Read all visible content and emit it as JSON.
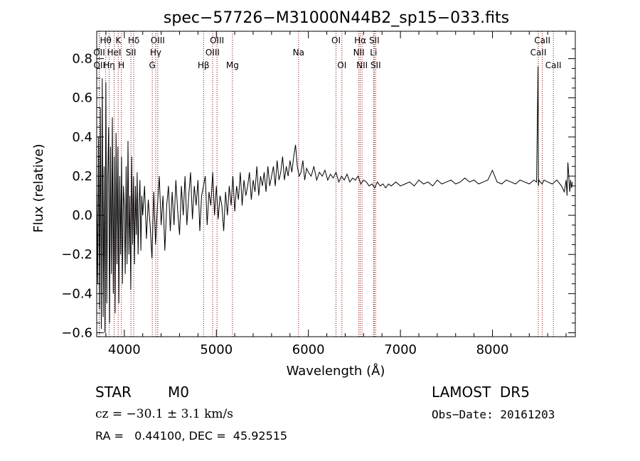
{
  "chart_data": {
    "type": "line",
    "title": "spec−57726−M31000N44B2_sp15−033.fits",
    "xlabel": "Wavelength (Å)",
    "ylabel": "Flux (relative)",
    "xlim": [
      3700,
      8900
    ],
    "ylim": [
      -0.62,
      0.94
    ],
    "x_ticks": [
      4000,
      5000,
      6000,
      7000,
      8000
    ],
    "x_tick_labels": [
      "4000",
      "5000",
      "6000",
      "7000",
      "8000"
    ],
    "y_ticks": [
      -0.6,
      -0.4,
      -0.2,
      0.0,
      0.2,
      0.4,
      0.6,
      0.8
    ],
    "y_tick_labels": [
      "−0.6",
      "−0.4",
      "−0.2",
      "0.0",
      "0.2",
      "0.4",
      "0.6",
      "0.8"
    ],
    "grid": false,
    "line_color": "#000000",
    "marker_color": "#8b0000",
    "spectral_lines": [
      {
        "name": "Hθ",
        "wavelength": 3798,
        "row": 0
      },
      {
        "name": "OII",
        "wavelength": 3727,
        "row": 1
      },
      {
        "name": "OII",
        "wavelength": 3729,
        "row": 2
      },
      {
        "name": "Hη",
        "wavelength": 3835,
        "row": 2
      },
      {
        "name": "HeI",
        "wavelength": 3889,
        "row": 1
      },
      {
        "name": "K",
        "wavelength": 3934,
        "row": 0
      },
      {
        "name": "H",
        "wavelength": 3968,
        "row": 2
      },
      {
        "name": "Hδ",
        "wavelength": 4102,
        "row": 0
      },
      {
        "name": "SII",
        "wavelength": 4072,
        "row": 1
      },
      {
        "name": "OIII",
        "wavelength": 4363,
        "row": 0
      },
      {
        "name": "Hγ",
        "wavelength": 4341,
        "row": 1
      },
      {
        "name": "G",
        "wavelength": 4304,
        "row": 2
      },
      {
        "name": "Hβ",
        "wavelength": 4861,
        "row": 2
      },
      {
        "name": "OIII",
        "wavelength": 5007,
        "row": 0
      },
      {
        "name": "OIII",
        "wavelength": 4959,
        "row": 1
      },
      {
        "name": "Mg",
        "wavelength": 5175,
        "row": 2
      },
      {
        "name": "Na",
        "wavelength": 5893,
        "row": 1
      },
      {
        "name": "OI",
        "wavelength": 6300,
        "row": 0
      },
      {
        "name": "OI",
        "wavelength": 6364,
        "row": 2
      },
      {
        "name": "Hα",
        "wavelength": 6563,
        "row": 0
      },
      {
        "name": "NII",
        "wavelength": 6548,
        "row": 1
      },
      {
        "name": "NII",
        "wavelength": 6583,
        "row": 2
      },
      {
        "name": "SII",
        "wavelength": 6716,
        "row": 0
      },
      {
        "name": "Li",
        "wavelength": 6708,
        "row": 1
      },
      {
        "name": "SII",
        "wavelength": 6731,
        "row": 2
      },
      {
        "name": "CaII",
        "wavelength": 8542,
        "row": 0
      },
      {
        "name": "CaII",
        "wavelength": 8498,
        "row": 1
      },
      {
        "name": "CaII",
        "wavelength": 8662,
        "row": 2
      }
    ],
    "series": [
      {
        "x": [
          3700,
          3710,
          3720,
          3730,
          3740,
          3750,
          3760,
          3770,
          3780,
          3790,
          3800,
          3810,
          3820,
          3830,
          3840,
          3850,
          3860,
          3870,
          3880,
          3890,
          3900,
          3910,
          3920,
          3930,
          3940,
          3950,
          3960,
          3970,
          3980,
          3990,
          4000,
          4010,
          4020,
          4030,
          4040,
          4050,
          4060,
          4070,
          4080,
          4090,
          4100,
          4110,
          4120,
          4130,
          4140,
          4150,
          4160,
          4170,
          4180,
          4190,
          4200,
          4220,
          4240,
          4260,
          4280,
          4300,
          4320,
          4340,
          4360,
          4380,
          4400,
          4420,
          4440,
          4460,
          4480,
          4500,
          4520,
          4540,
          4560,
          4580,
          4600,
          4620,
          4640,
          4660,
          4680,
          4700,
          4720,
          4740,
          4760,
          4780,
          4800,
          4820,
          4840,
          4860,
          4880,
          4900,
          4920,
          4940,
          4960,
          4980,
          5000,
          5020,
          5040,
          5060,
          5080,
          5100,
          5120,
          5140,
          5160,
          5180,
          5200,
          5220,
          5240,
          5260,
          5280,
          5300,
          5320,
          5340,
          5360,
          5380,
          5400,
          5420,
          5440,
          5460,
          5480,
          5500,
          5520,
          5540,
          5560,
          5580,
          5600,
          5620,
          5640,
          5660,
          5680,
          5700,
          5720,
          5740,
          5760,
          5780,
          5800,
          5820,
          5840,
          5860,
          5880,
          5900,
          5920,
          5940,
          5960,
          5980,
          6000,
          6030,
          6060,
          6090,
          6120,
          6150,
          6180,
          6210,
          6240,
          6270,
          6300,
          6330,
          6360,
          6390,
          6420,
          6450,
          6480,
          6510,
          6540,
          6570,
          6600,
          6630,
          6660,
          6690,
          6720,
          6750,
          6780,
          6810,
          6840,
          6870,
          6900,
          6950,
          7000,
          7050,
          7100,
          7150,
          7200,
          7250,
          7300,
          7350,
          7400,
          7450,
          7500,
          7550,
          7600,
          7650,
          7700,
          7750,
          7800,
          7850,
          7900,
          7950,
          8000,
          8050,
          8100,
          8150,
          8200,
          8250,
          8300,
          8350,
          8400,
          8450,
          8480,
          8495,
          8500,
          8505,
          8520,
          8540,
          8560,
          8600,
          8650,
          8700,
          8750,
          8780,
          8800,
          8810,
          8820,
          8830,
          8840,
          8850,
          8860,
          8870
        ],
        "y": [
          0.15,
          -0.35,
          0.4,
          -0.48,
          0.55,
          -0.58,
          0.7,
          -0.52,
          0.25,
          -0.6,
          0.68,
          -0.45,
          0.2,
          0.45,
          -0.55,
          0.35,
          -0.3,
          0.5,
          -0.4,
          0.3,
          -0.5,
          0.42,
          -0.25,
          0.35,
          -0.45,
          0.2,
          -0.2,
          0.3,
          -0.35,
          0.15,
          0.05,
          -0.3,
          0.25,
          -0.25,
          0.38,
          -0.2,
          0.1,
          -0.38,
          0.3,
          -0.15,
          0.2,
          -0.25,
          0.15,
          -0.1,
          0.22,
          -0.2,
          0.05,
          0.18,
          -0.18,
          0.1,
          0.0,
          0.15,
          -0.12,
          0.08,
          -0.05,
          -0.22,
          0.12,
          -0.15,
          0.05,
          0.2,
          -0.05,
          0.1,
          -0.18,
          0.05,
          0.15,
          -0.08,
          0.12,
          -0.05,
          0.18,
          0.02,
          -0.1,
          0.15,
          0.0,
          0.2,
          -0.05,
          0.1,
          0.22,
          -0.02,
          0.15,
          0.05,
          0.18,
          -0.08,
          0.1,
          0.15,
          0.2,
          -0.05,
          0.12,
          0.05,
          0.22,
          0.0,
          0.15,
          -0.02,
          0.1,
          0.05,
          -0.08,
          0.12,
          0.0,
          0.15,
          0.05,
          0.2,
          0.02,
          0.15,
          0.08,
          0.22,
          0.05,
          0.18,
          0.1,
          0.15,
          0.22,
          0.08,
          0.18,
          0.12,
          0.25,
          0.1,
          0.2,
          0.15,
          0.22,
          0.12,
          0.25,
          0.15,
          0.2,
          0.25,
          0.15,
          0.28,
          0.18,
          0.22,
          0.3,
          0.18,
          0.25,
          0.2,
          0.28,
          0.22,
          0.3,
          0.36,
          0.25,
          0.2,
          0.22,
          0.28,
          0.18,
          0.24,
          0.22,
          0.2,
          0.25,
          0.18,
          0.22,
          0.2,
          0.23,
          0.18,
          0.21,
          0.19,
          0.22,
          0.17,
          0.2,
          0.18,
          0.21,
          0.17,
          0.19,
          0.18,
          0.2,
          0.16,
          0.18,
          0.17,
          0.15,
          0.16,
          0.14,
          0.17,
          0.15,
          0.16,
          0.14,
          0.16,
          0.15,
          0.17,
          0.15,
          0.16,
          0.17,
          0.15,
          0.18,
          0.16,
          0.17,
          0.15,
          0.18,
          0.16,
          0.17,
          0.18,
          0.16,
          0.17,
          0.19,
          0.17,
          0.18,
          0.16,
          0.17,
          0.18,
          0.23,
          0.17,
          0.16,
          0.18,
          0.17,
          0.16,
          0.18,
          0.17,
          0.16,
          0.18,
          0.17,
          0.76,
          0.15,
          0.18,
          0.17,
          0.16,
          0.18,
          0.17,
          0.16,
          0.18,
          0.15,
          0.12,
          0.18,
          0.1,
          0.27,
          0.2,
          0.12,
          0.18,
          0.14,
          0.17
        ]
      }
    ]
  },
  "info": {
    "object_class": "STAR",
    "subclass": "M0",
    "survey": "LAMOST  DR5",
    "redshift": "cz = −30.1 ± 3.1 km/s",
    "obs_date": "Obs−Date: 20161203",
    "coords": "RA =   0.44100, DEC =  45.92515"
  }
}
